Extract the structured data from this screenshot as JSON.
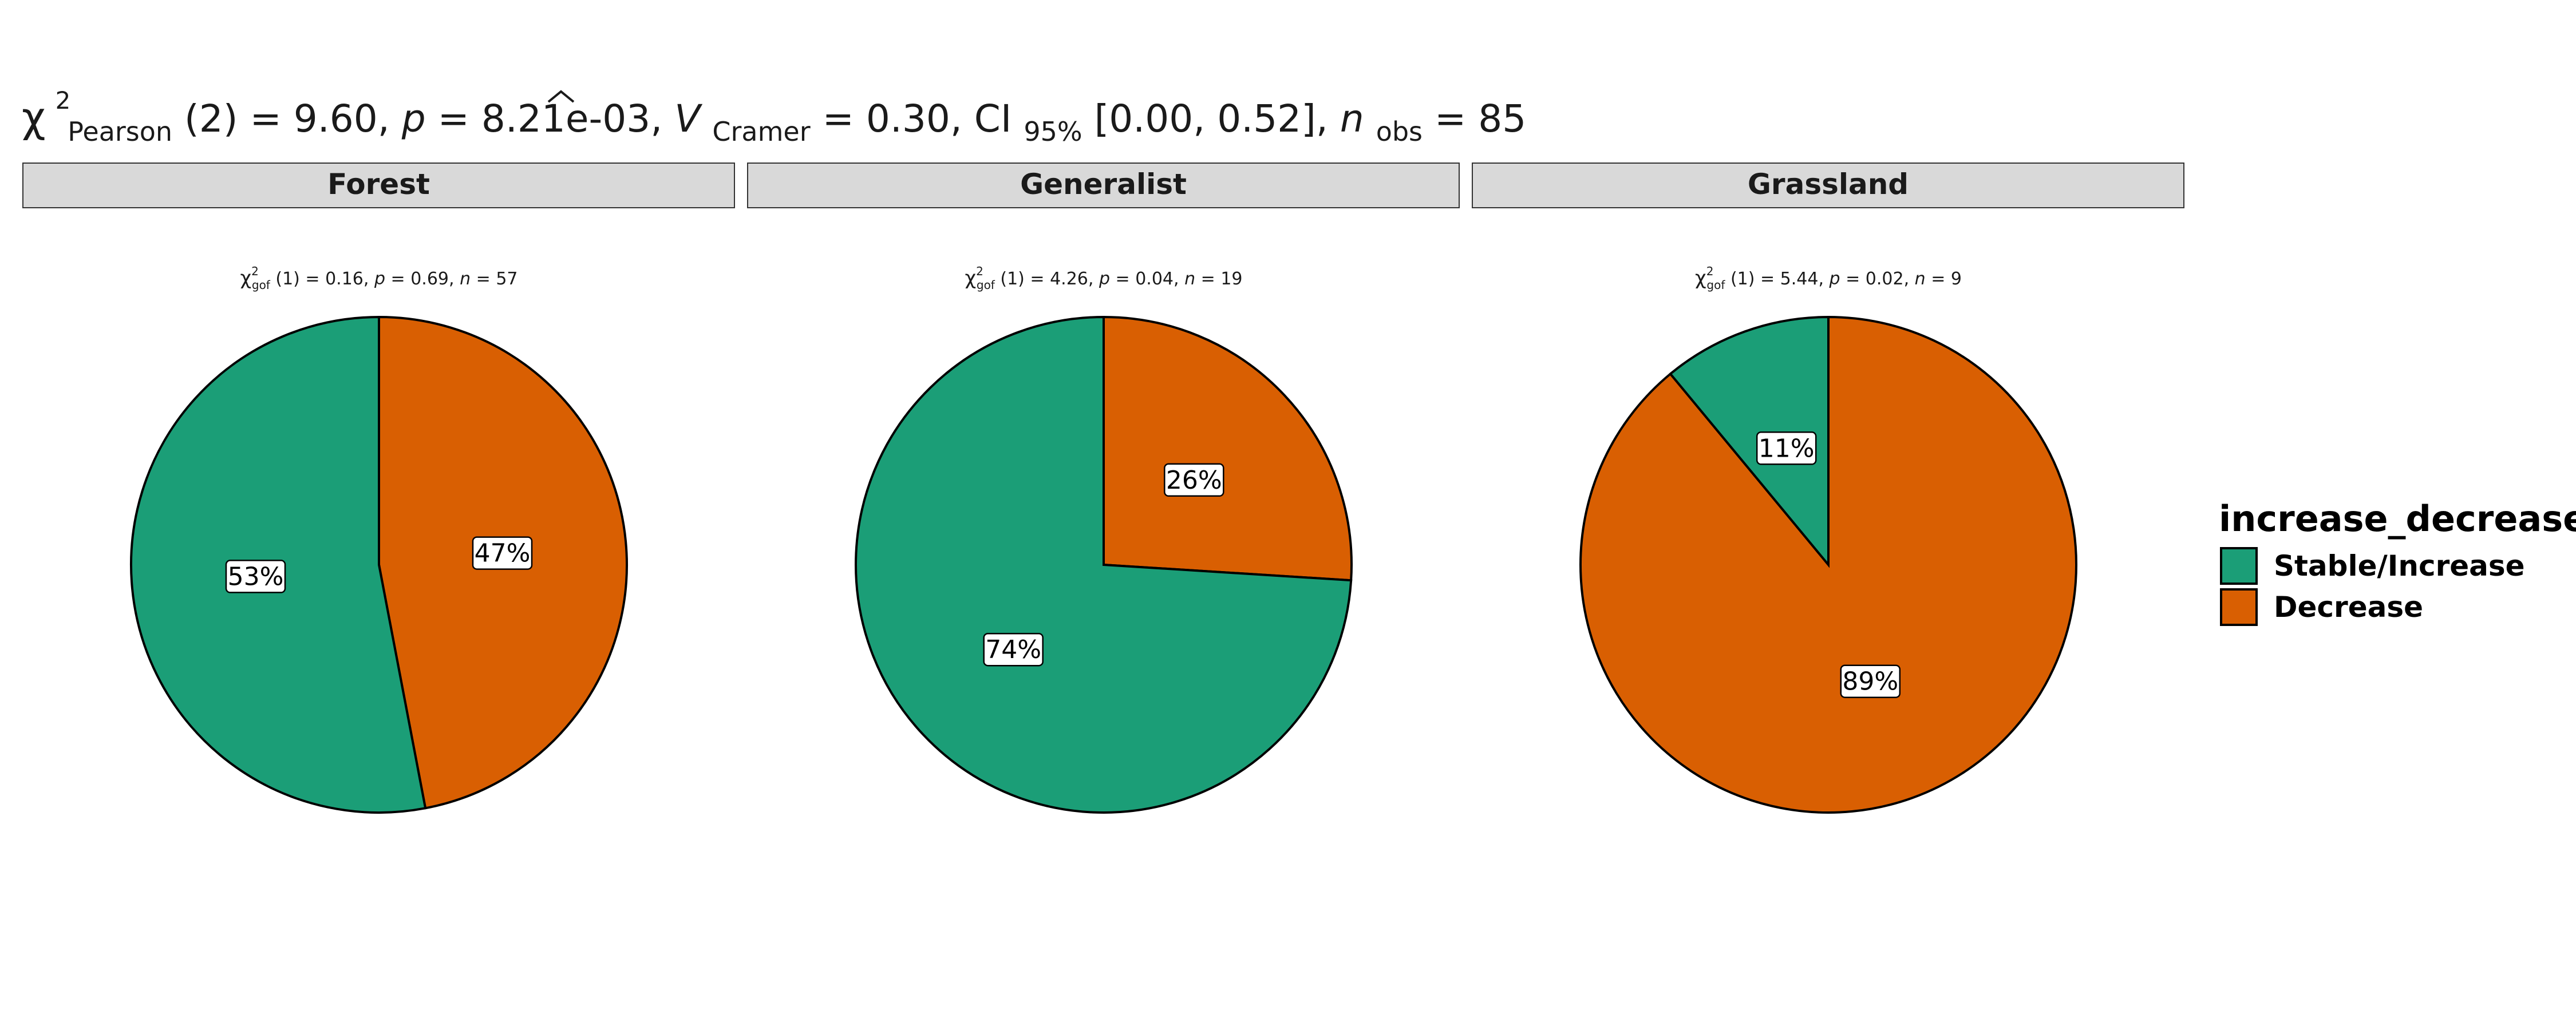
{
  "title": {
    "chi_symbol": "χ",
    "superscript": "2",
    "subscript": "Pearson",
    "stat": "(2) = 9.60, ",
    "p_symbol": "p",
    "p_value": " = 8.21e-03, ",
    "v_symbol": "V",
    "v_subscript": "Cramer",
    "v_value": " = 0.30, CI",
    "ci_subscript": "95%",
    "ci_value": " [0.00, 0.52], ",
    "n_symbol": "n",
    "n_subscript": "obs",
    "n_value": " = 85"
  },
  "legend": {
    "title": "increase_decrease",
    "items": [
      {
        "label": "Stable/Increase",
        "color": "#1b9e77"
      },
      {
        "label": "Decrease",
        "color": "#d95f02"
      }
    ]
  },
  "chart_data": {
    "type": "pie",
    "facets": [
      {
        "name": "Forest",
        "subtitle": {
          "chi": "χ",
          "sup": "2",
          "sub": "gof",
          "df": " (1) = 0.16,  ",
          "p": "p",
          "p_val": " = 0.69,  ",
          "n": "n",
          "n_val": " = 57"
        },
        "slices": [
          {
            "category": "Decrease",
            "percent": 47,
            "label": "47%"
          },
          {
            "category": "Stable/Increase",
            "percent": 53,
            "label": "53%"
          }
        ]
      },
      {
        "name": "Generalist",
        "subtitle": {
          "chi": "χ",
          "sup": "2",
          "sub": "gof",
          "df": " (1) = 4.26,  ",
          "p": "p",
          "p_val": " = 0.04,  ",
          "n": "n",
          "n_val": " = 19"
        },
        "slices": [
          {
            "category": "Decrease",
            "percent": 26,
            "label": "26%"
          },
          {
            "category": "Stable/Increase",
            "percent": 74,
            "label": "74%"
          }
        ]
      },
      {
        "name": "Grassland",
        "subtitle": {
          "chi": "χ",
          "sup": "2",
          "sub": "gof",
          "df": " (1) = 5.44,  ",
          "p": "p",
          "p_val": " = 0.02,  ",
          "n": "n",
          "n_val": " = 9"
        },
        "slices": [
          {
            "category": "Decrease",
            "percent": 89,
            "label": "89%"
          },
          {
            "category": "Stable/Increase",
            "percent": 11,
            "label": "11%"
          }
        ]
      }
    ]
  }
}
